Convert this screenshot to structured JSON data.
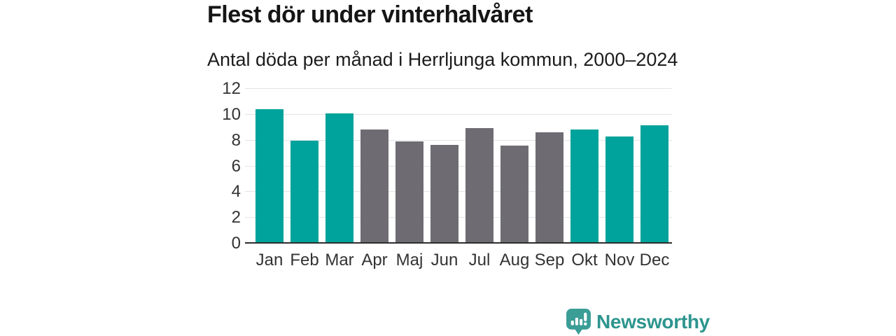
{
  "header": {
    "title": "Flest dör under vinterhalvåret",
    "subtitle": "Antal döda per månad i Herrljunga kommun, 2000–2024"
  },
  "chart_data": {
    "type": "bar",
    "title": "Flest dör under vinterhalvåret",
    "subtitle": "Antal döda per månad i Herrljunga kommun, 2000–2024",
    "categories": [
      "Jan",
      "Feb",
      "Mar",
      "Apr",
      "Maj",
      "Jun",
      "Jul",
      "Aug",
      "Sep",
      "Okt",
      "Nov",
      "Dec"
    ],
    "values": [
      10.3,
      7.85,
      10.0,
      8.75,
      7.8,
      7.55,
      8.85,
      7.5,
      8.55,
      8.75,
      8.2,
      9.05
    ],
    "bar_colors": [
      "teal",
      "teal",
      "teal",
      "gray",
      "gray",
      "gray",
      "gray",
      "gray",
      "gray",
      "teal",
      "teal",
      "teal"
    ],
    "ylabel": "",
    "xlabel": "",
    "ylim": [
      0,
      12
    ],
    "yticks": [
      0,
      2,
      4,
      6,
      8,
      10,
      12
    ],
    "grid": true,
    "legend": "none",
    "colors": {
      "teal": "#00a39b",
      "gray": "#6e6c72"
    }
  },
  "footer": {
    "brand": "Newsworthy",
    "brand_color": "#2d958e",
    "icon_color": "#3a9d96"
  }
}
